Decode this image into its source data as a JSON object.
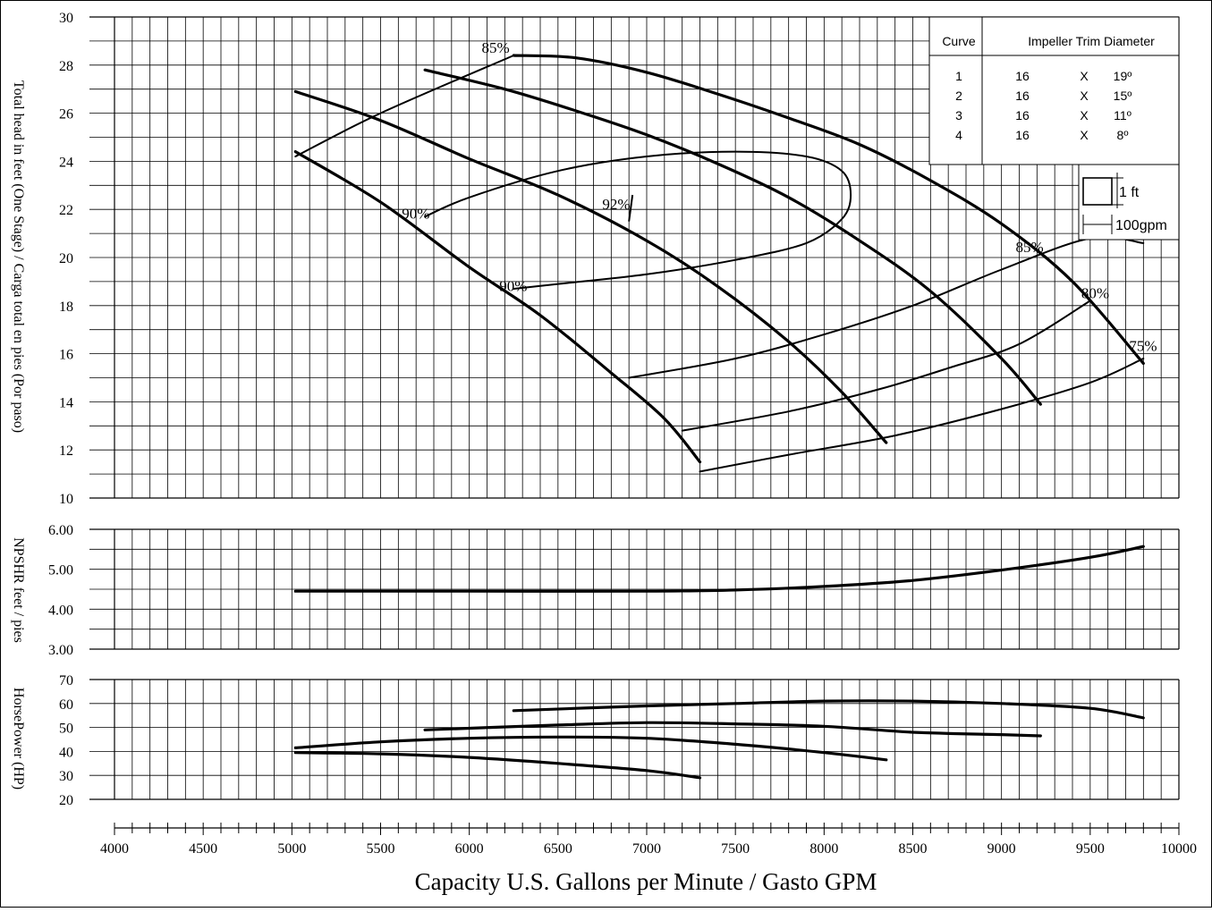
{
  "chart_data": [
    {
      "type": "line",
      "panel": "head",
      "ylabel": "Total head in feet (One Stage) / Carga total en pies (Por paso)",
      "ylim": [
        10,
        30
      ],
      "ytick_labels": [
        "10",
        "12",
        "14",
        "16",
        "18",
        "20",
        "22",
        "24",
        "26",
        "28",
        "30"
      ],
      "series": [
        {
          "name": "1",
          "x": [
            6250,
            6600,
            7000,
            7400,
            7800,
            8200,
            8600,
            9000,
            9400,
            9800
          ],
          "y": [
            28.4,
            28.3,
            27.7,
            26.8,
            25.8,
            24.7,
            23.2,
            21.4,
            19.0,
            15.6
          ]
        },
        {
          "name": "2",
          "x": [
            5750,
            6200,
            6600,
            7000,
            7400,
            7800,
            8200,
            8600,
            9000,
            9220
          ],
          "y": [
            27.8,
            27.0,
            26.1,
            25.1,
            23.9,
            22.5,
            20.7,
            18.6,
            15.8,
            13.9
          ]
        },
        {
          "name": "3",
          "x": [
            5020,
            5500,
            6000,
            6500,
            7000,
            7400,
            7800,
            8100,
            8350
          ],
          "y": [
            26.9,
            25.7,
            24.1,
            22.6,
            20.7,
            18.8,
            16.5,
            14.4,
            12.3
          ]
        },
        {
          "name": "4",
          "x": [
            5020,
            5500,
            6000,
            6400,
            6800,
            7100,
            7300
          ],
          "y": [
            24.4,
            22.3,
            19.6,
            17.6,
            15.2,
            13.3,
            11.5
          ]
        }
      ],
      "efficiency_labels": [
        "85%",
        "90%",
        "92%",
        "90%",
        "85%",
        "80%",
        "75%"
      ],
      "efficiency_curves": [
        {
          "label": "85%",
          "x": [
            5020,
            5500,
            6250
          ],
          "y": [
            24.2,
            26.0,
            28.4
          ]
        },
        {
          "label": "92%",
          "x": [
            5750,
            6000,
            6500,
            7000,
            7500,
            7900,
            8100,
            8150,
            8100,
            7900,
            7500,
            7000,
            6500,
            6250
          ],
          "y": [
            21.7,
            22.5,
            23.6,
            24.2,
            24.4,
            24.2,
            23.6,
            22.6,
            21.6,
            20.6,
            19.9,
            19.3,
            18.9,
            18.7
          ]
        },
        {
          "label": "85%",
          "x": [
            6900,
            7500,
            8000,
            8500,
            9000,
            9500,
            9800
          ],
          "y": [
            15.0,
            15.8,
            16.8,
            18.0,
            19.5,
            20.8,
            20.6
          ]
        },
        {
          "label": "80%",
          "x": [
            7200,
            7800,
            8300,
            8700,
            9100,
            9500
          ],
          "y": [
            12.8,
            13.6,
            14.5,
            15.4,
            16.4,
            18.2
          ]
        },
        {
          "label": "75%",
          "x": [
            7300,
            7800,
            8400,
            9000,
            9500,
            9800
          ],
          "y": [
            11.1,
            11.8,
            12.6,
            13.7,
            14.8,
            15.8
          ]
        }
      ]
    },
    {
      "type": "line",
      "panel": "npshr",
      "ylabel": "NPSHR feet / pies",
      "ylim": [
        3.0,
        6.0
      ],
      "ytick_labels": [
        "3.00",
        "4.00",
        "5.00",
        "6.00"
      ],
      "series": [
        {
          "name": "NPSHR",
          "x": [
            5020,
            6000,
            7000,
            7500,
            8000,
            8500,
            9000,
            9500,
            9800
          ],
          "y": [
            4.45,
            4.45,
            4.45,
            4.48,
            4.57,
            4.72,
            4.98,
            5.3,
            5.57
          ]
        }
      ]
    },
    {
      "type": "line",
      "panel": "horsepower",
      "ylabel": "HorsePower (HP)",
      "ylim": [
        20,
        70
      ],
      "ytick_labels": [
        "20",
        "30",
        "40",
        "50",
        "60",
        "70"
      ],
      "series": [
        {
          "name": "1",
          "x": [
            6250,
            7000,
            7500,
            8000,
            8500,
            9000,
            9500,
            9800
          ],
          "y": [
            57,
            59,
            60,
            61,
            61,
            60,
            58,
            54
          ]
        },
        {
          "name": "2",
          "x": [
            5750,
            6500,
            7000,
            7500,
            8000,
            8500,
            9000,
            9220
          ],
          "y": [
            49,
            51,
            52,
            51.5,
            50.5,
            48,
            47,
            46.5
          ]
        },
        {
          "name": "3",
          "x": [
            5020,
            5500,
            6000,
            6500,
            7000,
            7500,
            8000,
            8350
          ],
          "y": [
            41.5,
            44,
            45.5,
            46,
            45.5,
            43,
            39.5,
            36.5
          ]
        },
        {
          "name": "4",
          "x": [
            5020,
            5500,
            6000,
            6500,
            7000,
            7300
          ],
          "y": [
            39.5,
            39,
            37.5,
            35,
            32,
            29
          ]
        }
      ]
    }
  ],
  "x_axis": {
    "xlabel": "Capacity U.S. Gallons per Minute / Gasto GPM",
    "xlim": [
      4000,
      10000
    ],
    "tick_labels": [
      "4000",
      "4500",
      "5000",
      "5500",
      "6000",
      "6500",
      "7000",
      "7500",
      "8000",
      "8500",
      "9000",
      "9500",
      "10000"
    ]
  },
  "legend": {
    "header_curve": "Curve",
    "header_desc": "Impeller Trim Diameter",
    "rows": [
      {
        "curve": "1",
        "size": "16",
        "x": "X",
        "deg": "19º"
      },
      {
        "curve": "2",
        "size": "16",
        "x": "X",
        "deg": "15º"
      },
      {
        "curve": "3",
        "size": "16",
        "x": "X",
        "deg": "11º"
      },
      {
        "curve": "4",
        "size": "16",
        "x": "X",
        "deg": "8º"
      }
    ]
  },
  "scale_key": {
    "head_unit": "1 ft",
    "flow_unit": "100gpm"
  }
}
